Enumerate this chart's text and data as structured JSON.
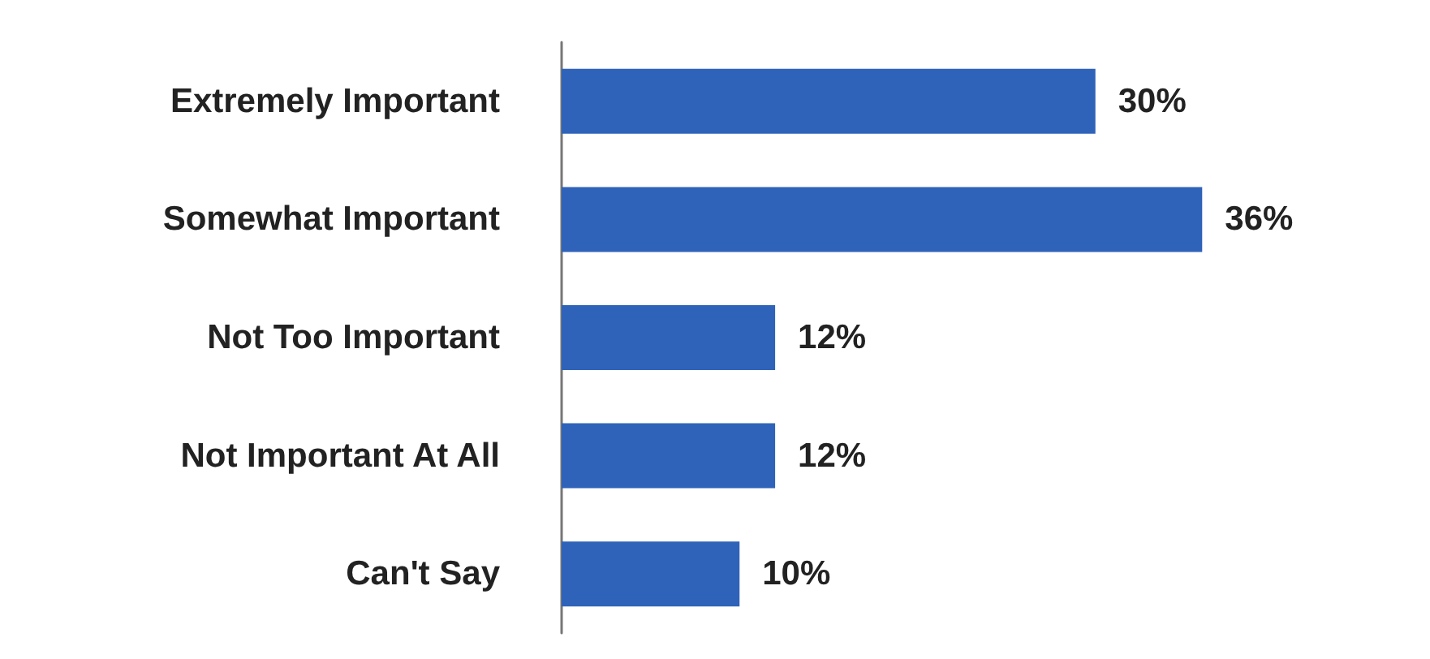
{
  "chart_data": {
    "type": "bar",
    "orientation": "horizontal",
    "categories": [
      "Extremely Important",
      "Somewhat Important",
      "Not Too Important",
      "Not Important At All",
      "Can't Say"
    ],
    "values": [
      30,
      36,
      12,
      12,
      10
    ],
    "value_labels": [
      "30%",
      "36%",
      "12%",
      "12%",
      "10%"
    ],
    "color": "#2f63b9"
  }
}
